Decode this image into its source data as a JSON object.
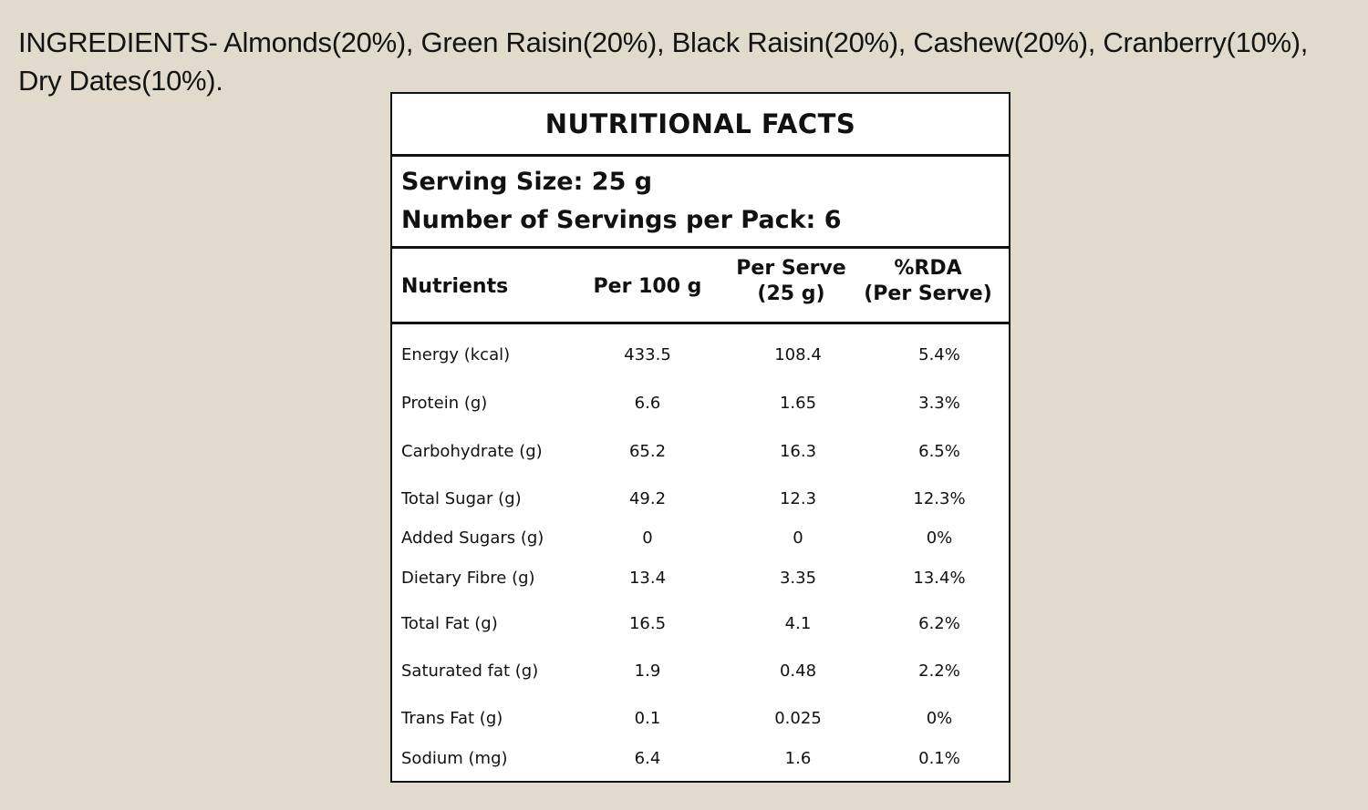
{
  "ingredients": {
    "line1": "INGREDIENTS- Almonds(20%), Green Raisin(20%), Black Raisin(20%), Cashew(20%), Cranberry(10%),",
    "line2": "Dry Dates(10%)."
  },
  "panel": {
    "title": "NUTRITIONAL FACTS",
    "serving_size": "Serving Size: 25 g",
    "servings_per_pack": "Number of Servings per Pack: 6"
  },
  "table": {
    "headers": {
      "nutrients": "Nutrients",
      "per100": "Per 100 g",
      "per_serve_line1": "Per Serve",
      "per_serve_line2": "(25 g)",
      "rda_line1": "%RDA",
      "rda_line2": "(Per Serve)"
    },
    "rows": [
      {
        "name": "Energy (kcal)",
        "per100": "433.5",
        "per_serve": "108.4",
        "rda": "5.4%"
      },
      {
        "name": "Protein (g)",
        "per100": "6.6",
        "per_serve": "1.65",
        "rda": "3.3%"
      },
      {
        "name": "Carbohydrate  (g)",
        "per100": "65.2",
        "per_serve": "16.3",
        "rda": "6.5%"
      },
      {
        "name": "Total Sugar (g)",
        "per100": "49.2",
        "per_serve": "12.3",
        "rda": "12.3%"
      },
      {
        "name": "Added Sugars (g)",
        "per100": "0",
        "per_serve": "0",
        "rda": "0%"
      },
      {
        "name": "Dietary Fibre (g)",
        "per100": "13.4",
        "per_serve": "3.35",
        "rda": "13.4%"
      },
      {
        "name": "Total Fat (g)",
        "per100": "16.5",
        "per_serve": "4.1",
        "rda": "6.2%"
      },
      {
        "name": "Saturated fat (g)",
        "per100": "1.9",
        "per_serve": "0.48",
        "rda": "2.2%"
      },
      {
        "name": "Trans Fat (g)",
        "per100": "0.1",
        "per_serve": "0.025",
        "rda": "0%"
      },
      {
        "name": "Sodium (mg)",
        "per100": "6.4",
        "per_serve": "1.6",
        "rda": "0.1%"
      }
    ]
  }
}
